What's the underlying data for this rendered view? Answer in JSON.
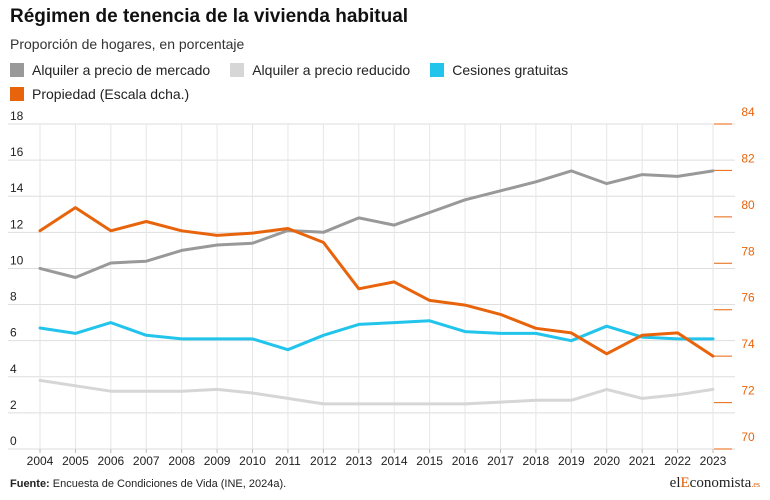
{
  "chart_data": {
    "type": "line",
    "title": "Régimen de tenencia de la vivienda habitual",
    "subtitle": "Proporción de hogares, en porcentaje",
    "x": [
      "2004",
      "2005",
      "2006",
      "2007",
      "2008",
      "2009",
      "2010",
      "2011",
      "2012",
      "2013",
      "2014",
      "2015",
      "2016",
      "2017",
      "2018",
      "2019",
      "2020",
      "2021",
      "2022",
      "2023"
    ],
    "left_axis": {
      "range": [
        0,
        18
      ],
      "ticks": [
        "0",
        "2",
        "4",
        "6",
        "8",
        "10",
        "12",
        "14",
        "16",
        "18"
      ],
      "color": "#222222"
    },
    "right_axis": {
      "range": [
        70,
        84
      ],
      "ticks": [
        "70",
        "72",
        "74",
        "76",
        "78",
        "80",
        "82",
        "84"
      ],
      "color": "#e8640c"
    },
    "series": [
      {
        "name": "Alquiler a precio de mercado",
        "axis": "left",
        "color": "#999999",
        "values": [
          10.0,
          9.5,
          10.3,
          10.4,
          11.0,
          11.3,
          11.4,
          12.1,
          12.0,
          12.8,
          12.4,
          13.1,
          13.8,
          14.3,
          14.8,
          15.4,
          14.7,
          15.2,
          15.1,
          15.4
        ]
      },
      {
        "name": "Alquiler a precio reducido",
        "axis": "left",
        "color": "#d6d6d6",
        "values": [
          3.8,
          3.5,
          3.2,
          3.2,
          3.2,
          3.3,
          3.1,
          2.8,
          2.5,
          2.5,
          2.5,
          2.5,
          2.5,
          2.6,
          2.7,
          2.7,
          3.3,
          2.8,
          3.0,
          3.3
        ]
      },
      {
        "name": "Cesiones gratuitas",
        "axis": "left",
        "color": "#22c4ec",
        "values": [
          6.7,
          6.4,
          7.0,
          6.3,
          6.1,
          6.1,
          6.1,
          5.5,
          6.3,
          6.9,
          7.0,
          7.1,
          6.5,
          6.4,
          6.4,
          6.0,
          6.8,
          6.2,
          6.1,
          6.1
        ]
      },
      {
        "name": "Propiedad (Escala dcha.)",
        "axis": "right",
        "color": "#e8640c",
        "values": [
          79.4,
          80.4,
          79.4,
          79.8,
          79.4,
          79.2,
          79.3,
          79.5,
          78.9,
          76.9,
          77.2,
          76.4,
          76.2,
          75.8,
          75.2,
          75.0,
          74.1,
          74.9,
          75.0,
          74.0
        ]
      }
    ],
    "grid": true,
    "legend_position": "top-left"
  },
  "source_label": "Fuente:",
  "source_text": "Encuesta de Condiciones de Vida (INE, 2024a).",
  "logo": {
    "pre": "el",
    "accent": "E",
    "post": "conomista",
    "suffix": ".es"
  }
}
